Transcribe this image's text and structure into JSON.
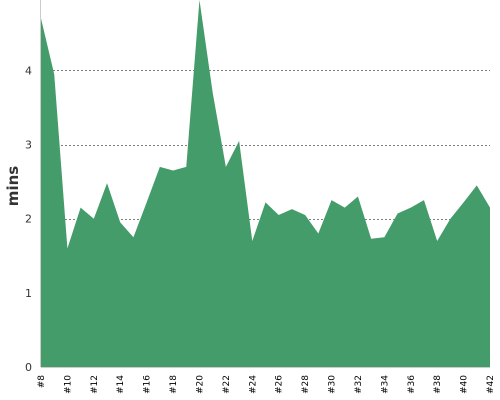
{
  "chart_data": {
    "type": "area",
    "title": "",
    "xlabel": "",
    "ylabel": "mins",
    "x": [
      "#8",
      "#9",
      "#10",
      "#11",
      "#12",
      "#13",
      "#14",
      "#15",
      "#16",
      "#17",
      "#18",
      "#19",
      "#20",
      "#21",
      "#22",
      "#23",
      "#24",
      "#25",
      "#26",
      "#27",
      "#28",
      "#29",
      "#30",
      "#31",
      "#32",
      "#33",
      "#34",
      "#35",
      "#36",
      "#37",
      "#38",
      "#39",
      "#40",
      "#41",
      "#42"
    ],
    "xtick_labels": [
      "#8",
      "#10",
      "#12",
      "#14",
      "#16",
      "#18",
      "#20",
      "#22",
      "#24",
      "#26",
      "#28",
      "#30",
      "#32",
      "#34",
      "#36",
      "#38",
      "#40",
      "#42"
    ],
    "series": [
      {
        "values": [
          4.7,
          3.95,
          1.6,
          2.15,
          2.0,
          2.48,
          1.95,
          1.75,
          2.22,
          2.7,
          2.65,
          2.7,
          5.5,
          3.7,
          2.7,
          3.05,
          1.7,
          2.22,
          2.05,
          2.13,
          2.05,
          1.8,
          2.25,
          2.15,
          2.3,
          1.73,
          1.75,
          2.07,
          2.15,
          2.25,
          1.7,
          2.0,
          2.22,
          2.45,
          2.15
        ]
      }
    ],
    "ylim": [
      0,
      4.95
    ],
    "yticks": [
      0,
      1,
      2,
      3,
      4
    ],
    "grid": "horizontal-dashed",
    "legend": "none",
    "colors": {
      "fill": "#449c6b",
      "grid": "#555555",
      "axis": "#cccccc",
      "text": "#333333"
    }
  }
}
